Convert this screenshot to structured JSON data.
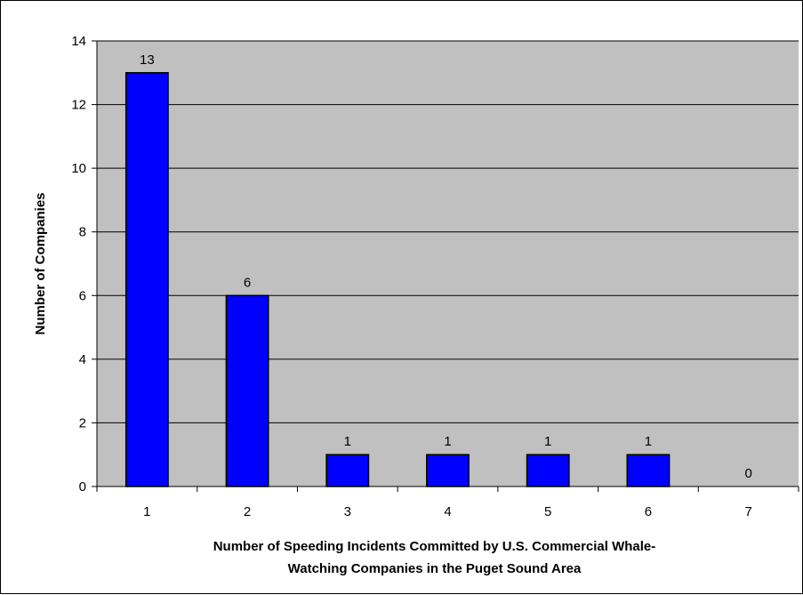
{
  "chart_data": {
    "type": "bar",
    "categories": [
      "1",
      "2",
      "3",
      "4",
      "5",
      "6",
      "7"
    ],
    "values": [
      13,
      6,
      1,
      1,
      1,
      1,
      0
    ],
    "data_labels": [
      "13",
      "6",
      "1",
      "1",
      "1",
      "1",
      "0"
    ],
    "title": "",
    "xlabel_lines": [
      "Number of Speeding Incidents Committed by U.S. Commercial Whale-",
      "Watching Companies in the Puget Sound Area"
    ],
    "ylabel": "Number of Companies",
    "ylim": [
      0,
      14
    ],
    "yticks": [
      "0",
      "2",
      "4",
      "6",
      "8",
      "10",
      "12",
      "14"
    ],
    "grid": true,
    "legend": "none",
    "colors": {
      "bar": "#0000ff",
      "plot_background": "#c0c0c0",
      "gridline": "#000000"
    }
  }
}
